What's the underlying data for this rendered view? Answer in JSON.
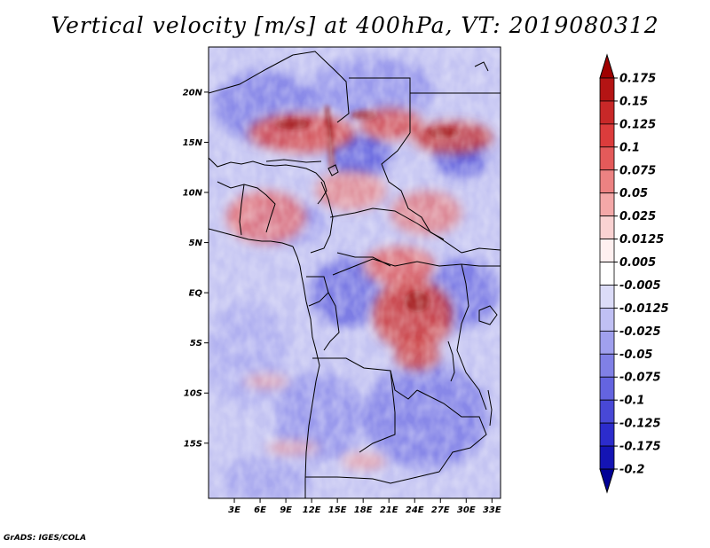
{
  "title": "Vertical velocity [m/s] at 400hPa, VT: 2019080312",
  "credit": "GrADS: IGES/COLA",
  "map": {
    "lat_range": [
      -20.5,
      24.5
    ],
    "lon_range": [
      0,
      34
    ],
    "lat_ticks": [
      {
        "value": 20,
        "label": "20N"
      },
      {
        "value": 15,
        "label": "15N"
      },
      {
        "value": 10,
        "label": "10N"
      },
      {
        "value": 5,
        "label": "5N"
      },
      {
        "value": 0,
        "label": "EQ"
      },
      {
        "value": -5,
        "label": "5S"
      },
      {
        "value": -10,
        "label": "10S"
      },
      {
        "value": -15,
        "label": "15S"
      }
    ],
    "lon_ticks": [
      {
        "value": 3,
        "label": "3E"
      },
      {
        "value": 6,
        "label": "6E"
      },
      {
        "value": 9,
        "label": "9E"
      },
      {
        "value": 12,
        "label": "12E"
      },
      {
        "value": 15,
        "label": "15E"
      },
      {
        "value": 18,
        "label": "18E"
      },
      {
        "value": 21,
        "label": "21E"
      },
      {
        "value": 24,
        "label": "24E"
      },
      {
        "value": 27,
        "label": "27E"
      },
      {
        "value": 30,
        "label": "30E"
      },
      {
        "value": 33,
        "label": "33E"
      }
    ],
    "colors": {
      "ocean_base": "#c8c8f4",
      "strong_ascent": "#a01818",
      "moderate_ascent": "#e25050",
      "weak_ascent": "#f4a8a8",
      "strong_descent": "#3c3cd2",
      "moderate_descent": "#7070e6"
    }
  },
  "colorbar": {
    "levels": [
      "0.175",
      "0.15",
      "0.125",
      "0.1",
      "0.075",
      "0.05",
      "0.025",
      "0.0125",
      "0.005",
      "-0.005",
      "-0.0125",
      "-0.025",
      "-0.05",
      "-0.075",
      "-0.1",
      "-0.125",
      "-0.175",
      "-0.2"
    ],
    "colors": [
      "#a00000",
      "#b41414",
      "#c82828",
      "#dc3c3c",
      "#e45a5a",
      "#ec8282",
      "#f4a8a8",
      "#fad2d2",
      "#fff0f0",
      "#ffffff",
      "#dcdcf8",
      "#c0c0f4",
      "#a0a0ee",
      "#8080e6",
      "#6464e0",
      "#4848d6",
      "#2c2ccc",
      "#1414b4",
      "#000096"
    ]
  }
}
